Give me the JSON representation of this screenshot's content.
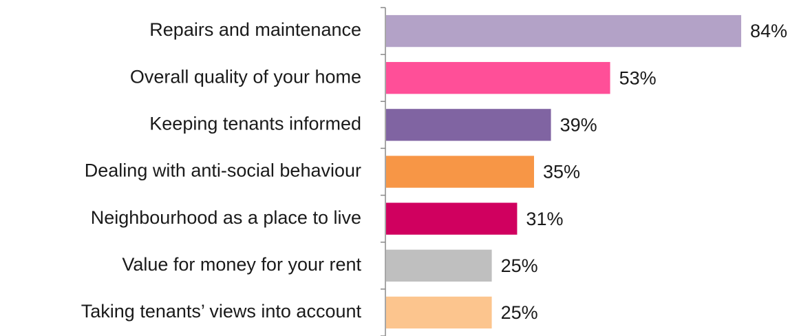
{
  "chart_data": {
    "type": "bar",
    "orientation": "horizontal",
    "categories": [
      "Repairs and maintenance",
      "Overall quality of your home",
      "Keeping tenants informed",
      "Dealing with anti-social behaviour",
      "Neighbourhood as a place to live",
      "Value for money for your rent",
      "Taking tenants’ views into account"
    ],
    "values": [
      84,
      53,
      39,
      35,
      31,
      25,
      25
    ],
    "value_labels": [
      "84%",
      "53%",
      "39%",
      "35%",
      "31%",
      "25%",
      "25%"
    ],
    "colors": [
      "#b3a2c7",
      "#ff4f98",
      "#8064a2",
      "#f79646",
      "#d0005f",
      "#bfbfbf",
      "#fcc58e"
    ]
  }
}
